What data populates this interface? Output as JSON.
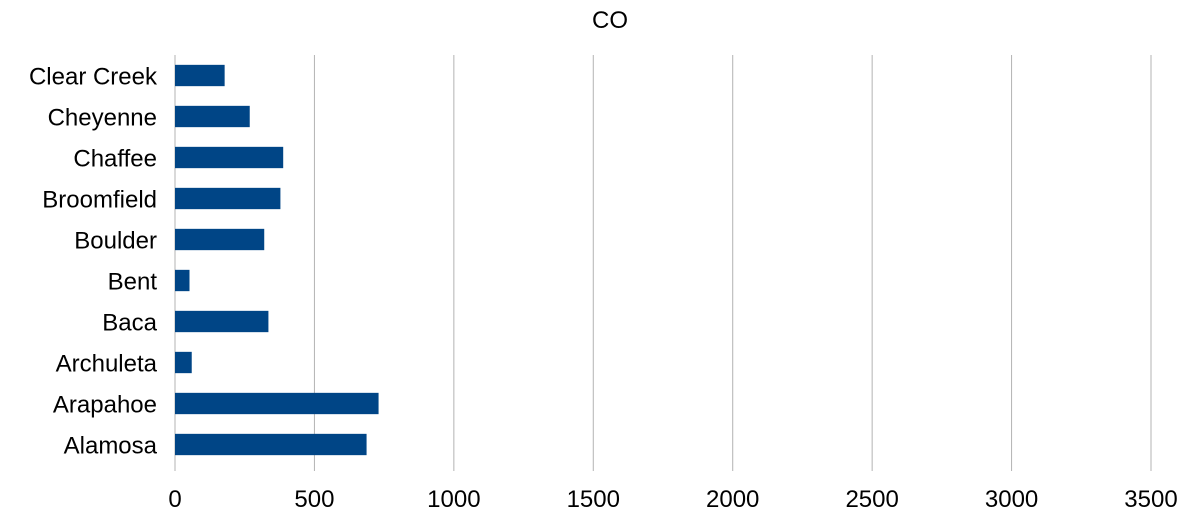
{
  "chart_data": {
    "type": "bar",
    "orientation": "horizontal",
    "title": "CO",
    "xlabel": "",
    "ylabel": "",
    "categories": [
      "Alamosa",
      "Arapahoe",
      "Archuleta",
      "Baca",
      "Bent",
      "Boulder",
      "Broomfield",
      "Chaffee",
      "Cheyenne",
      "Clear Creek"
    ],
    "values": [
      687,
      730,
      60,
      335,
      52,
      320,
      378,
      388,
      268,
      178
    ],
    "xlim": [
      0,
      3500
    ],
    "xticks": [
      0,
      500,
      1000,
      1500,
      2000,
      2500,
      3000,
      3500
    ],
    "grid": true,
    "legend": "none",
    "bar_color": "#004586"
  }
}
